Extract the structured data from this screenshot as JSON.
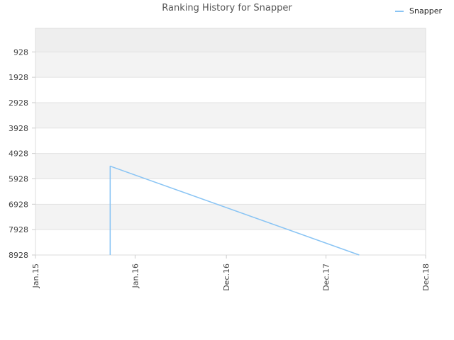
{
  "chart_data": {
    "type": "line",
    "title": "Ranking History for Snapper",
    "xlabel": "",
    "ylabel": "",
    "y_inverted": true,
    "ylim": [
      8928,
      0
    ],
    "y_ticks": [
      928,
      1928,
      2928,
      3928,
      4928,
      5928,
      6928,
      7928,
      8928
    ],
    "x_ticks": [
      {
        "label": "Jan.15",
        "date": "2015-01"
      },
      {
        "label": "Jan.16",
        "date": "2016-01"
      },
      {
        "label": "Dec.16",
        "date": "2016-12"
      },
      {
        "label": "Dec.17",
        "date": "2017-12"
      },
      {
        "label": "Dec.18",
        "date": "2018-12"
      }
    ],
    "xlim": [
      "2015-01",
      "2018-12"
    ],
    "grid": "horizontal bands",
    "legend_position": "top-right",
    "series": [
      {
        "name": "Snapper",
        "color": "#89c4f4",
        "points": [
          {
            "x": "2015-10",
            "y": 8928
          },
          {
            "x": "2015-10",
            "y": 5430
          },
          {
            "x": "2018-04",
            "y": 8928
          }
        ]
      }
    ]
  }
}
